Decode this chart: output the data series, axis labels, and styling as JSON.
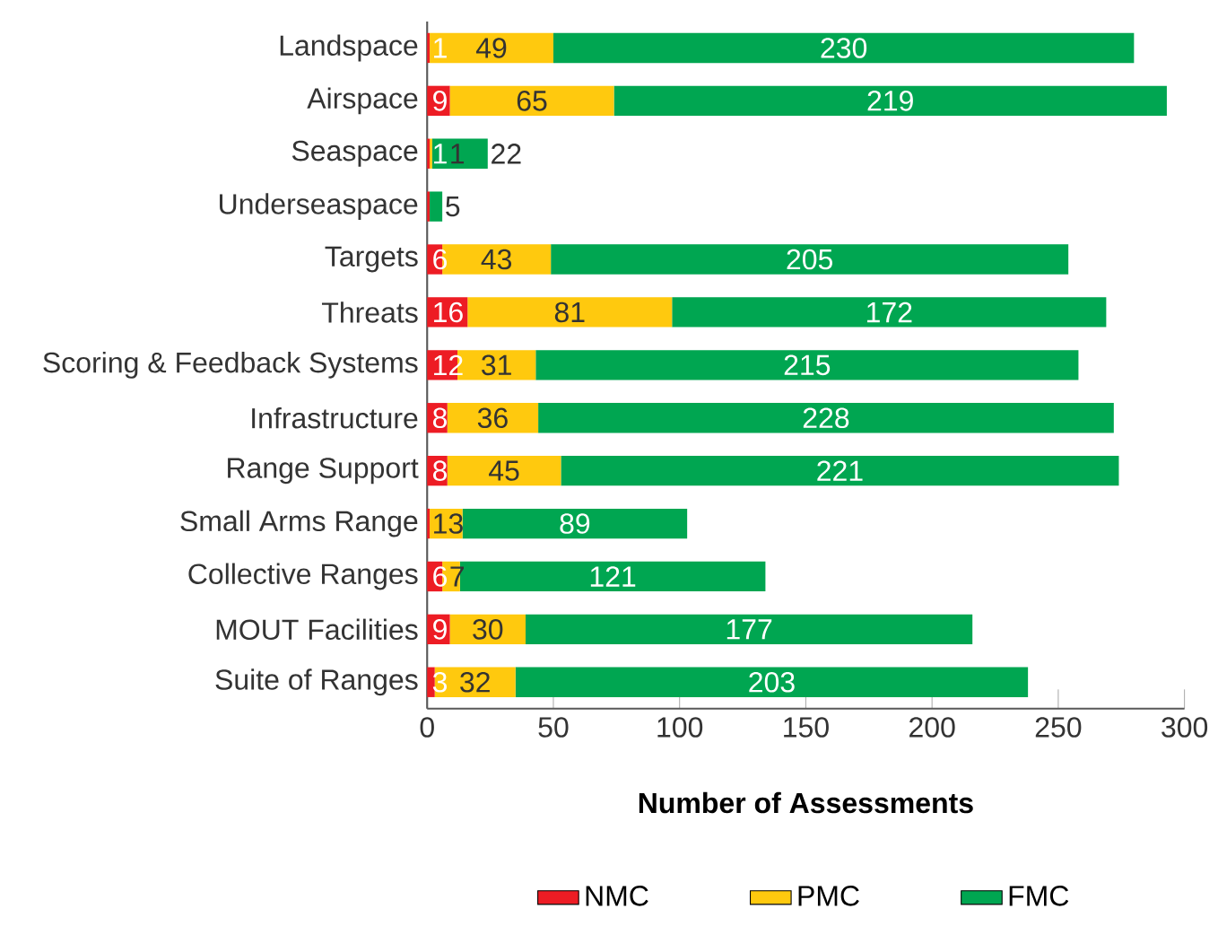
{
  "chart_data": {
    "type": "bar",
    "orientation": "horizontal",
    "stacked": true,
    "xlabel": "Number of Assessments",
    "categories": [
      "Landspace",
      "Airspace",
      "Seaspace",
      "Underseaspace",
      "Targets",
      "Threats",
      "Scoring & Feedback Systems",
      "Infrastructure",
      "Range Support",
      "Small Arms Range",
      "Collective Ranges",
      "MOUT Facilities",
      "Suite of Ranges"
    ],
    "series": [
      {
        "name": "NMC",
        "color": "#ed1c24",
        "values": [
          1,
          9,
          1,
          1,
          6,
          16,
          12,
          8,
          8,
          1,
          6,
          9,
          3
        ],
        "value_labels": [
          "1",
          "9",
          "1",
          null,
          "6",
          "16",
          "12",
          "8",
          "8",
          null,
          "6",
          "9",
          "3"
        ]
      },
      {
        "name": "PMC",
        "color": "#ffc90e",
        "values": [
          49,
          65,
          1,
          0,
          43,
          81,
          31,
          36,
          45,
          13,
          7,
          30,
          32
        ],
        "value_labels": [
          "49",
          "65",
          "1",
          null,
          "43",
          "81",
          "31",
          "36",
          "45",
          "13",
          "7",
          "30",
          "32"
        ]
      },
      {
        "name": "FMC",
        "color": "#00a651",
        "values": [
          230,
          219,
          22,
          5,
          205,
          172,
          215,
          228,
          221,
          89,
          121,
          177,
          203
        ],
        "value_labels": [
          "230",
          "219",
          "22",
          "5",
          "205",
          "172",
          "215",
          "228",
          "221",
          "89",
          "121",
          "177",
          "203"
        ]
      }
    ],
    "xlim": [
      0,
      300
    ],
    "xticks": [
      0,
      50,
      100,
      150,
      200,
      250,
      300
    ],
    "legend": "bottom",
    "grid": false
  }
}
